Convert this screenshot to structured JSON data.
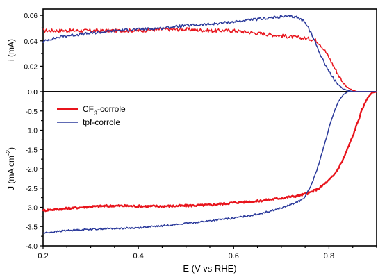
{
  "chart_data": {
    "type": "line",
    "xlabel": "E (V vs RHE)",
    "x_ticks": [
      "0.2",
      "0.4",
      "0.6",
      "0.8"
    ],
    "xlim": [
      0.2,
      0.9
    ],
    "panels": [
      {
        "id": "top",
        "ylabel": "i (mA)",
        "ylim": [
          0,
          0.065
        ],
        "y_ticks": [
          "0.0",
          "0.02",
          "0.04",
          "0.06"
        ],
        "series": [
          {
            "name": "CF3-corrole",
            "color": "#e8141c",
            "x": [
              0.2,
              0.25,
              0.3,
              0.35,
              0.4,
              0.45,
              0.5,
              0.55,
              0.6,
              0.65,
              0.7,
              0.75,
              0.77,
              0.78,
              0.79,
              0.8,
              0.81,
              0.82,
              0.83,
              0.84,
              0.85,
              0.86,
              0.87,
              0.9
            ],
            "y": [
              0.048,
              0.048,
              0.048,
              0.048,
              0.048,
              0.049,
              0.049,
              0.048,
              0.048,
              0.046,
              0.044,
              0.042,
              0.041,
              0.038,
              0.033,
              0.027,
              0.02,
              0.013,
              0.007,
              0.003,
              0.001,
              0.0,
              0.0,
              0.0
            ]
          },
          {
            "name": "tpf-corrole",
            "color": "#2b3a9b",
            "x": [
              0.2,
              0.21,
              0.25,
              0.3,
              0.35,
              0.4,
              0.45,
              0.5,
              0.55,
              0.6,
              0.65,
              0.7,
              0.73,
              0.75,
              0.76,
              0.77,
              0.78,
              0.79,
              0.8,
              0.81,
              0.82,
              0.83,
              0.84,
              0.85,
              0.9
            ],
            "y": [
              0.039,
              0.041,
              0.044,
              0.046,
              0.048,
              0.049,
              0.05,
              0.052,
              0.053,
              0.055,
              0.057,
              0.059,
              0.059,
              0.055,
              0.048,
              0.04,
              0.031,
              0.023,
              0.016,
              0.01,
              0.005,
              0.002,
              0.001,
              0.0,
              0.0
            ]
          }
        ]
      },
      {
        "id": "bottom",
        "ylabel": "J (mA cm",
        "ylabel_sup": "-2",
        "ylabel_tail": ")",
        "ylim": [
          -4.0,
          0.0
        ],
        "y_ticks": [
          "-4.0",
          "-3.5",
          "-3.0",
          "-2.5",
          "-2.0",
          "-1.5",
          "-1.0",
          "-0.5",
          "0.0"
        ],
        "legend_position": "top-left",
        "series": [
          {
            "name": "CF3-corrole",
            "color": "#e8141c",
            "x": [
              0.2,
              0.25,
              0.3,
              0.35,
              0.4,
              0.45,
              0.5,
              0.55,
              0.6,
              0.65,
              0.7,
              0.74,
              0.76,
              0.78,
              0.8,
              0.81,
              0.82,
              0.83,
              0.84,
              0.85,
              0.86,
              0.87,
              0.88,
              0.89,
              0.9
            ],
            "y": [
              -3.08,
              -3.03,
              -2.98,
              -2.96,
              -2.97,
              -2.97,
              -2.96,
              -2.94,
              -2.88,
              -2.84,
              -2.76,
              -2.69,
              -2.62,
              -2.5,
              -2.3,
              -2.17,
              -1.98,
              -1.75,
              -1.45,
              -1.15,
              -0.8,
              -0.45,
              -0.18,
              -0.03,
              0.0
            ]
          },
          {
            "name": "tpf-corrole",
            "color": "#2b3a9b",
            "x": [
              0.2,
              0.25,
              0.3,
              0.35,
              0.4,
              0.45,
              0.5,
              0.55,
              0.6,
              0.65,
              0.7,
              0.72,
              0.74,
              0.75,
              0.76,
              0.77,
              0.78,
              0.79,
              0.8,
              0.81,
              0.82,
              0.83,
              0.84,
              0.9
            ],
            "y": [
              -3.67,
              -3.6,
              -3.57,
              -3.55,
              -3.53,
              -3.48,
              -3.42,
              -3.35,
              -3.28,
              -3.18,
              -3.02,
              -2.93,
              -2.83,
              -2.72,
              -2.5,
              -2.2,
              -1.82,
              -1.4,
              -0.95,
              -0.55,
              -0.25,
              -0.08,
              0.0,
              0.0
            ]
          }
        ]
      }
    ],
    "legend": {
      "entries": [
        {
          "label_main": "CF",
          "label_sub": "3",
          "label_rest": "-corrole",
          "color": "#e8141c"
        },
        {
          "label_main": "tpf-corrole",
          "label_sub": "",
          "label_rest": "",
          "color": "#2b3a9b"
        }
      ]
    }
  }
}
